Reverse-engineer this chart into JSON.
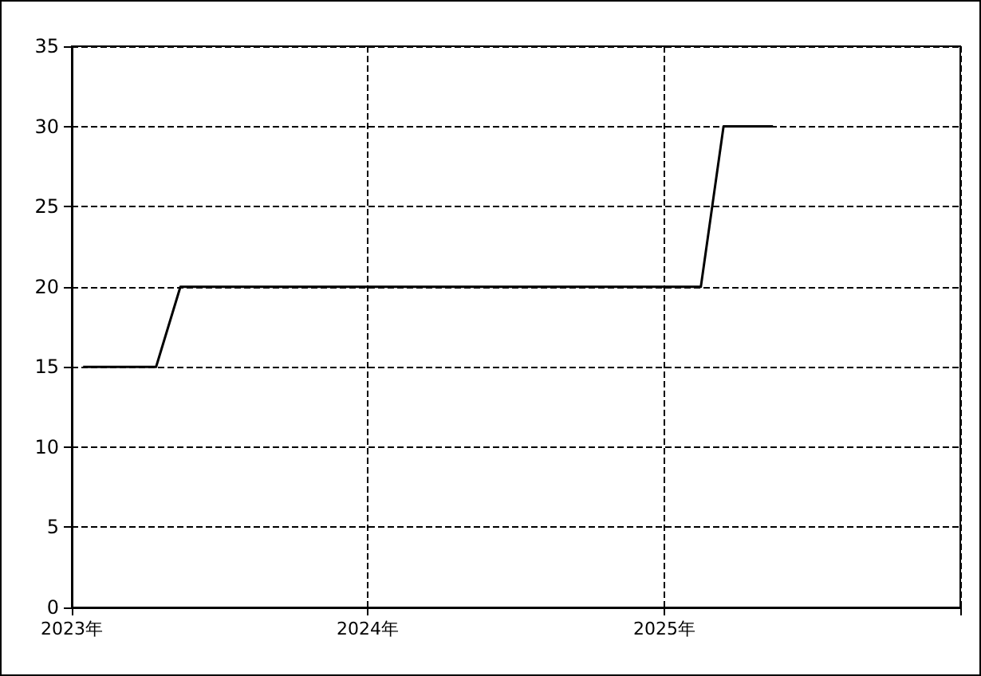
{
  "chart_data": {
    "type": "line",
    "x": [
      "2023-01-15",
      "2023-04-15",
      "2023-05-15",
      "2025-02-15",
      "2025-03-15",
      "2025-05-15"
    ],
    "series": [
      {
        "color": "#000000",
        "values": [
          15,
          15,
          20,
          20,
          30,
          30
        ]
      }
    ],
    "xlim": [
      "2023",
      "2026"
    ],
    "xticks": [
      {
        "value": "2023",
        "label": "2023年"
      },
      {
        "value": "2024",
        "label": "2024年"
      },
      {
        "value": "2025",
        "label": "2025年"
      },
      {
        "value": "2026",
        "label": null
      }
    ],
    "ylim": [
      0,
      35
    ],
    "yticks": [
      0,
      5,
      10,
      15,
      20,
      25,
      30,
      35
    ],
    "grid": true,
    "marker": "none",
    "line_style": "solid"
  }
}
